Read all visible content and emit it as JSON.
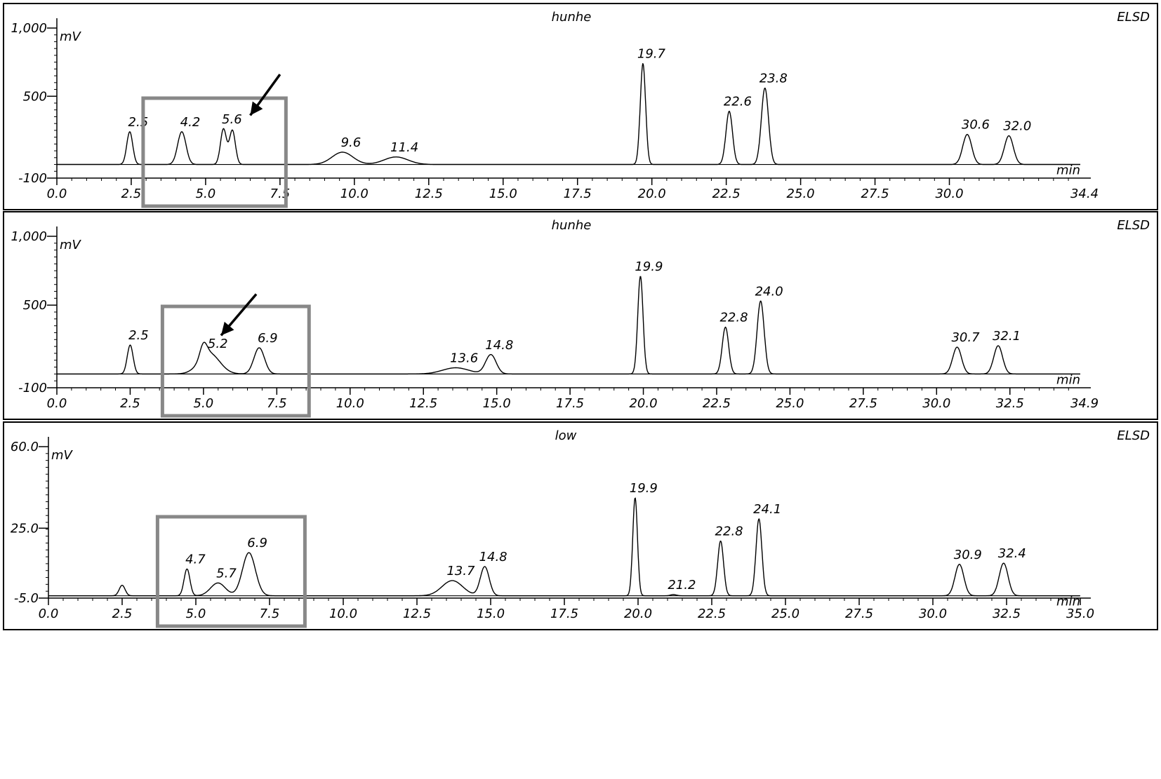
{
  "chart_data": [
    {
      "type": "line",
      "title": "hunhe",
      "detector": "ELSD",
      "unit": "mV",
      "xunit": "min",
      "xlim": [
        0.0,
        34.4
      ],
      "ylim": [
        -100,
        1000
      ],
      "ytick_labels": [
        "1,000",
        "500",
        "-100"
      ],
      "ytick_values": [
        1000,
        500,
        -100
      ],
      "xtick_values": [
        0,
        2.5,
        5,
        7.5,
        10,
        12.5,
        15,
        17.5,
        20,
        22.5,
        25,
        27.5,
        30
      ],
      "xtick_labels": [
        "0.0",
        "2.5",
        "5.0",
        "7.5",
        "10.0",
        "12.5",
        "15.0",
        "17.5",
        "20.0",
        "22.5",
        "25.0",
        "27.5",
        "30.0"
      ],
      "x_end_label": "34.4",
      "baseline": 0,
      "peaks": [
        {
          "label": "2.5",
          "x": 2.45,
          "y": 240,
          "w": 0.1
        },
        {
          "label": "4.2",
          "x": 4.2,
          "y": 240,
          "w": 0.14
        },
        {
          "label": "5.6",
          "x": 5.6,
          "y": 260,
          "w": 0.1
        },
        {
          "label": "",
          "x": 5.9,
          "y": 250,
          "w": 0.1
        },
        {
          "label": "9.6",
          "x": 9.6,
          "y": 90,
          "w": 0.35
        },
        {
          "label": "11.4",
          "x": 11.4,
          "y": 55,
          "w": 0.4
        },
        {
          "label": "19.7",
          "x": 19.7,
          "y": 740,
          "w": 0.09
        },
        {
          "label": "22.6",
          "x": 22.6,
          "y": 390,
          "w": 0.11
        },
        {
          "label": "23.8",
          "x": 23.8,
          "y": 560,
          "w": 0.12
        },
        {
          "label": "30.6",
          "x": 30.6,
          "y": 220,
          "w": 0.15
        },
        {
          "label": "32.0",
          "x": 32.0,
          "y": 210,
          "w": 0.15
        }
      ],
      "highlight_box": [
        2.9,
        7.7
      ],
      "arrow": {
        "from": [
          7.5,
          660
        ],
        "to": [
          6.5,
          360
        ]
      }
    },
    {
      "type": "line",
      "title": "hunhe",
      "detector": "ELSD",
      "unit": "mV",
      "xunit": "min",
      "xlim": [
        0.0,
        34.9
      ],
      "ylim": [
        -100,
        1000
      ],
      "ytick_labels": [
        "1,000",
        "500",
        "-100"
      ],
      "ytick_values": [
        1000,
        500,
        -100
      ],
      "xtick_values": [
        0,
        2.5,
        5,
        7.5,
        10,
        12.5,
        15,
        17.5,
        20,
        22.5,
        25,
        27.5,
        30,
        32.5
      ],
      "xtick_labels": [
        "0.0",
        "2.5",
        "5.0",
        "7.5",
        "10.0",
        "12.5",
        "15.0",
        "17.5",
        "20.0",
        "22.5",
        "25.0",
        "27.5",
        "30.0",
        "32.5"
      ],
      "x_end_label": "34.9",
      "baseline": 0,
      "peaks": [
        {
          "label": "2.5",
          "x": 2.5,
          "y": 210,
          "w": 0.1
        },
        {
          "label": "",
          "x": 5.0,
          "y": 100,
          "w": 0.12
        },
        {
          "label": "5.2",
          "x": 5.2,
          "y": 150,
          "w": 0.35
        },
        {
          "label": "6.9",
          "x": 6.9,
          "y": 190,
          "w": 0.18
        },
        {
          "label": "13.6",
          "x": 13.6,
          "y": 45,
          "w": 0.45
        },
        {
          "label": "14.8",
          "x": 14.8,
          "y": 140,
          "w": 0.18
        },
        {
          "label": "19.9",
          "x": 19.9,
          "y": 710,
          "w": 0.09
        },
        {
          "label": "22.8",
          "x": 22.8,
          "y": 340,
          "w": 0.11
        },
        {
          "label": "24.0",
          "x": 24.0,
          "y": 530,
          "w": 0.12
        },
        {
          "label": "30.7",
          "x": 30.7,
          "y": 195,
          "w": 0.15
        },
        {
          "label": "32.1",
          "x": 32.1,
          "y": 205,
          "w": 0.15
        }
      ],
      "highlight_box": [
        3.6,
        8.6
      ],
      "arrow": {
        "from": [
          6.8,
          580
        ],
        "to": [
          5.6,
          280
        ]
      }
    },
    {
      "type": "line",
      "title": "low",
      "detector": "ELSD",
      "unit": "mV",
      "xunit": "min",
      "xlim": [
        0.0,
        35.0
      ],
      "ylim": [
        -5.0,
        60.0
      ],
      "ytick_labels": [
        "60.0",
        "25.0",
        "-5.0"
      ],
      "ytick_values": [
        60,
        25,
        -5
      ],
      "xtick_values": [
        0,
        2.5,
        5,
        7.5,
        10,
        12.5,
        15,
        17.5,
        20,
        22.5,
        25,
        27.5,
        30,
        32.5,
        35
      ],
      "xtick_labels": [
        "0.0",
        "2.5",
        "5.0",
        "7.5",
        "10.0",
        "12.5",
        "15.0",
        "17.5",
        "20.0",
        "22.5",
        "25.0",
        "27.5",
        "30.0",
        "32.5",
        "35.0"
      ],
      "x_end_label": "",
      "baseline": -4.0,
      "peaks": [
        {
          "label": "",
          "x": 2.5,
          "y": 0.5,
          "w": 0.1
        },
        {
          "label": "4.7",
          "x": 4.7,
          "y": 7.5,
          "w": 0.1
        },
        {
          "label": "5.7",
          "x": 5.75,
          "y": 1.5,
          "w": 0.25
        },
        {
          "label": "6.9",
          "x": 6.8,
          "y": 14.5,
          "w": 0.22
        },
        {
          "label": "13.7",
          "x": 13.7,
          "y": 2.5,
          "w": 0.35
        },
        {
          "label": "14.8",
          "x": 14.8,
          "y": 8.5,
          "w": 0.15
        },
        {
          "label": "19.9",
          "x": 19.9,
          "y": 38,
          "w": 0.08
        },
        {
          "label": "21.2",
          "x": 21.2,
          "y": -3.5,
          "w": 0.1
        },
        {
          "label": "22.8",
          "x": 22.8,
          "y": 19.5,
          "w": 0.1
        },
        {
          "label": "24.1",
          "x": 24.1,
          "y": 29,
          "w": 0.1
        },
        {
          "label": "30.9",
          "x": 30.9,
          "y": 9.5,
          "w": 0.15
        },
        {
          "label": "32.4",
          "x": 32.4,
          "y": 10,
          "w": 0.15
        }
      ],
      "highlight_box": [
        3.7,
        8.7
      ]
    }
  ]
}
